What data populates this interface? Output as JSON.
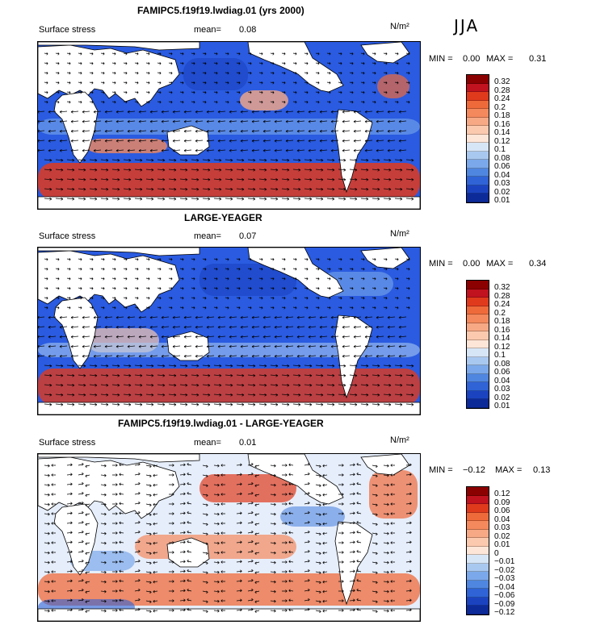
{
  "season": "JJA",
  "panels": [
    {
      "title": "FAMIPC5.f19f19.lwdiag.01 (yrs 2000)",
      "field": "Surface stress",
      "mean_label": "mean=",
      "mean": "0.08",
      "units": "N/m²",
      "min_label": "MIN =",
      "min": "0.00",
      "max_label": "MAX =",
      "max": "0.31",
      "cbar": [
        "0.32",
        "0.28",
        "0.24",
        "0.2",
        "0.18",
        "0.16",
        "0.14",
        "0.12",
        "0.1",
        "0.08",
        "0.06",
        "0.04",
        "0.03",
        "0.02",
        "0.01"
      ],
      "colors": [
        "#8b0000",
        "#c1121f",
        "#e03a1c",
        "#ef6a3a",
        "#f4895d",
        "#f7a985",
        "#fbc9ae",
        "#fde6d8",
        "#d6e6f7",
        "#a9c8f0",
        "#7aa8ea",
        "#4f86e0",
        "#2f63d6",
        "#1b43c0",
        "#0d2a99"
      ],
      "bg": "#2a5be0"
    },
    {
      "title": "LARGE-YEAGER",
      "field": "Surface stress",
      "mean_label": "mean=",
      "mean": "0.07",
      "units": "N/m²",
      "min_label": "MIN =",
      "min": "0.00",
      "max_label": "MAX =",
      "max": "0.34",
      "cbar": [
        "0.32",
        "0.28",
        "0.24",
        "0.2",
        "0.18",
        "0.16",
        "0.14",
        "0.12",
        "0.1",
        "0.08",
        "0.06",
        "0.04",
        "0.03",
        "0.02",
        "0.01"
      ],
      "colors": [
        "#8b0000",
        "#c1121f",
        "#e03a1c",
        "#ef6a3a",
        "#f4895d",
        "#f7a985",
        "#fbc9ae",
        "#fde6d8",
        "#d6e6f7",
        "#a9c8f0",
        "#7aa8ea",
        "#4f86e0",
        "#2f63d6",
        "#1b43c0",
        "#0d2a99"
      ],
      "bg": "#2a5be0"
    },
    {
      "title": "FAMIPC5.f19f19.lwdiag.01 - LARGE-YEAGER",
      "field": "Surface stress",
      "mean_label": "mean=",
      "mean": "0.01",
      "units": "N/m²",
      "min_label": "MIN =",
      "min": "−0.12",
      "max_label": "MAX =",
      "max": "0.13",
      "cbar": [
        "0.12",
        "0.09",
        "0.06",
        "0.04",
        "0.03",
        "0.02",
        "0.01",
        "0",
        "−0.01",
        "−0.02",
        "−0.03",
        "−0.04",
        "−0.06",
        "−0.09",
        "−0.12"
      ],
      "colors": [
        "#8b0000",
        "#c1121f",
        "#e03a1c",
        "#ef6a3a",
        "#f4895d",
        "#f7a985",
        "#fbc9ae",
        "#fde6d8",
        "#d6e6f7",
        "#a9c8f0",
        "#7aa8ea",
        "#4f86e0",
        "#2f63d6",
        "#1b43c0",
        "#0d2a99"
      ],
      "bg": "#e6eefb"
    }
  ],
  "chart_data": [
    {
      "type": "heatmap",
      "title": "FAMIPC5.f19f19.lwdiag.01 (yrs 2000)",
      "variable": "Surface stress",
      "units": "N/m^2",
      "mean": 0.08,
      "min": 0.0,
      "max": 0.31,
      "levels": [
        0.01,
        0.02,
        0.03,
        0.04,
        0.06,
        0.08,
        0.1,
        0.12,
        0.14,
        0.16,
        0.18,
        0.2,
        0.24,
        0.28,
        0.32
      ]
    },
    {
      "type": "heatmap",
      "title": "LARGE-YEAGER",
      "variable": "Surface stress",
      "units": "N/m^2",
      "mean": 0.07,
      "min": 0.0,
      "max": 0.34,
      "levels": [
        0.01,
        0.02,
        0.03,
        0.04,
        0.06,
        0.08,
        0.1,
        0.12,
        0.14,
        0.16,
        0.18,
        0.2,
        0.24,
        0.28,
        0.32
      ]
    },
    {
      "type": "heatmap",
      "title": "FAMIPC5.f19f19.lwdiag.01 - LARGE-YEAGER",
      "variable": "Surface stress",
      "units": "N/m^2",
      "mean": 0.01,
      "min": -0.12,
      "max": 0.13,
      "levels": [
        -0.12,
        -0.09,
        -0.06,
        -0.04,
        -0.03,
        -0.02,
        -0.01,
        0,
        0.01,
        0.02,
        0.03,
        0.04,
        0.06,
        0.09,
        0.12
      ]
    }
  ]
}
